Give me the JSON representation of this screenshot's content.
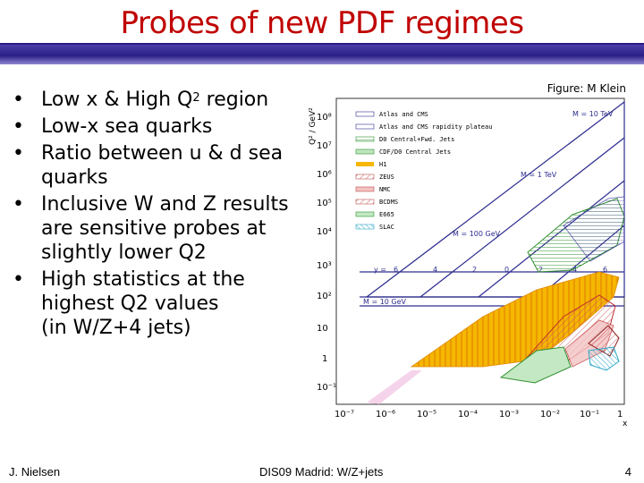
{
  "slide": {
    "title": "Probes of new PDF regimes",
    "bullets": [
      {
        "pre": "Low x & High Q",
        "sup": "2",
        "post": " region",
        "cont": []
      },
      {
        "pre": "Low-x sea quarks",
        "sup": "",
        "post": "",
        "cont": []
      },
      {
        "pre": "Ratio between u & d sea",
        "sup": "",
        "post": "",
        "cont": [
          "quarks"
        ]
      },
      {
        "pre": "Inclusive W and Z results",
        "sup": "",
        "post": "",
        "cont": [
          "are sensitive probes at",
          "slightly lower Q2"
        ]
      },
      {
        "pre": "High statistics at the",
        "sup": "",
        "post": "",
        "cont": [
          "highest Q2 values",
          "(in W/Z+4 jets)"
        ]
      }
    ],
    "figure_credit": "Figure: M Klein",
    "footer_left": "J. Nielsen",
    "footer_center": "DIS09 Madrid: W/Z+jets",
    "footer_right": "4"
  },
  "figure": {
    "y_axis_label": "Q² / GeV²",
    "x_axis_label": "x",
    "y_ticks": [
      "10⁸",
      "10⁷",
      "10⁶",
      "10⁵",
      "10⁴",
      "10³",
      "10²",
      "10",
      "1",
      "10⁻¹"
    ],
    "x_ticks": [
      "10⁻⁷",
      "10⁻⁶",
      "10⁻⁵",
      "10⁻⁴",
      "10⁻³",
      "10⁻²",
      "10⁻¹",
      "1"
    ],
    "legend": [
      {
        "label": "Atlas and CMS",
        "color": "#ffffff"
      },
      {
        "label": "Atlas and CMS rapidity plateau",
        "color": "#ffffff"
      },
      {
        "label": "D0 Central+Fwd. Jets",
        "color": "#9fd89f"
      },
      {
        "label": "CDF/D0 Central Jets",
        "color": "#bfe6bf"
      },
      {
        "label": "H1",
        "color": "#f5b700"
      },
      {
        "label": "ZEUS",
        "color": "#e88a8a"
      },
      {
        "label": "NMC",
        "color": "#f3c3c3"
      },
      {
        "label": "BCDMS",
        "color": "#f0a0a0"
      },
      {
        "label": "E665",
        "color": "#c3e8c3"
      },
      {
        "label": "SLAC",
        "color": "#b9e6f2"
      }
    ],
    "mass_labels": [
      "M = 10 TeV",
      "M = 1 TeV",
      "M = 100 GeV",
      "M = 10 GeV"
    ],
    "rapidity_labels": [
      "y =",
      "6",
      "4",
      "2",
      "0",
      "2",
      "4",
      "6"
    ],
    "colors": {
      "h1": "#f5b700",
      "atlas": "#2d2d8f",
      "blueband": "#3b3bb0"
    }
  }
}
